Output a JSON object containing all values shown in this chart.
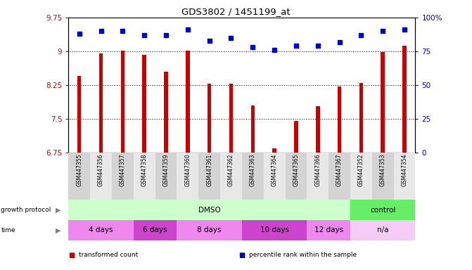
{
  "title": "GDS3802 / 1451199_at",
  "samples": [
    "GSM447355",
    "GSM447356",
    "GSM447357",
    "GSM447358",
    "GSM447359",
    "GSM447360",
    "GSM447361",
    "GSM447362",
    "GSM447363",
    "GSM447364",
    "GSM447365",
    "GSM447366",
    "GSM447367",
    "GSM447352",
    "GSM447353",
    "GSM447354"
  ],
  "bar_values": [
    8.45,
    8.95,
    9.02,
    8.92,
    8.55,
    9.02,
    8.28,
    8.28,
    7.8,
    6.85,
    7.45,
    7.78,
    8.22,
    8.3,
    8.98,
    9.12
  ],
  "dot_values": [
    88,
    90,
    90,
    87,
    87,
    91,
    83,
    85,
    78,
    76,
    79,
    79,
    82,
    87,
    90,
    91
  ],
  "bar_color": "#cc0000",
  "dot_color": "#0000cc",
  "ylim_left": [
    6.75,
    9.75
  ],
  "ylim_right": [
    0,
    100
  ],
  "yticks_left": [
    6.75,
    7.5,
    8.25,
    9.0,
    9.75
  ],
  "yticks_right": [
    0,
    25,
    50,
    75,
    100
  ],
  "ytick_labels_left": [
    "6.75",
    "7.5",
    "8.25",
    "9",
    "9.75"
  ],
  "ytick_labels_right": [
    "0",
    "25",
    "50",
    "75",
    "100%"
  ],
  "hlines": [
    7.5,
    8.25,
    9.0
  ],
  "growth_protocol_row": [
    {
      "label": "DMSO",
      "start": 0,
      "end": 13,
      "color": "#ccffcc"
    },
    {
      "label": "control",
      "start": 13,
      "end": 16,
      "color": "#66ee66"
    }
  ],
  "time_row": [
    {
      "label": "4 days",
      "start": 0,
      "end": 3,
      "color": "#ee88ee"
    },
    {
      "label": "6 days",
      "start": 3,
      "end": 5,
      "color": "#cc44cc"
    },
    {
      "label": "8 days",
      "start": 5,
      "end": 8,
      "color": "#ee88ee"
    },
    {
      "label": "10 days",
      "start": 8,
      "end": 11,
      "color": "#cc44cc"
    },
    {
      "label": "12 days",
      "start": 11,
      "end": 13,
      "color": "#ee88ee"
    },
    {
      "label": "n/a",
      "start": 13,
      "end": 16,
      "color": "#f5ccf5"
    }
  ],
  "legend_items": [
    {
      "label": "transformed count",
      "color": "#cc0000"
    },
    {
      "label": "percentile rank within the sample",
      "color": "#0000cc"
    }
  ],
  "background_color": "#ffffff",
  "plot_bg_color": "#ffffff",
  "tick_label_color_left": "#cc0000",
  "tick_label_color_right": "#0000cc",
  "gp_label": "growth protocol",
  "time_label": "time"
}
